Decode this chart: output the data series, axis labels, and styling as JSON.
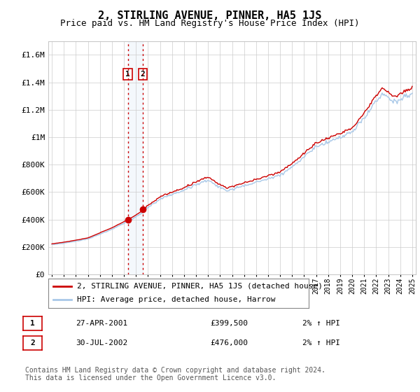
{
  "title": "2, STIRLING AVENUE, PINNER, HA5 1JS",
  "subtitle": "Price paid vs. HM Land Registry's House Price Index (HPI)",
  "y_values": [
    0,
    200000,
    400000,
    600000,
    800000,
    1000000,
    1200000,
    1400000,
    1600000
  ],
  "ylim": [
    0,
    1700000
  ],
  "x_start_year": 1995,
  "x_end_year": 2025,
  "line_color_hpi": "#a8c8e8",
  "line_color_price": "#cc0000",
  "marker_color": "#cc0000",
  "vline_color": "#cc0000",
  "transaction1_year": 2001.32,
  "transaction1_price": 399500,
  "transaction2_year": 2002.58,
  "transaction2_price": 476000,
  "legend_label1": "2, STIRLING AVENUE, PINNER, HA5 1JS (detached house)",
  "legend_label2": "HPI: Average price, detached house, Harrow",
  "table_row1": [
    "1",
    "27-APR-2001",
    "£399,500",
    "2% ↑ HPI"
  ],
  "table_row2": [
    "2",
    "30-JUL-2002",
    "£476,000",
    "2% ↑ HPI"
  ],
  "footnote": "Contains HM Land Registry data © Crown copyright and database right 2024.\nThis data is licensed under the Open Government Licence v3.0.",
  "background_color": "#ffffff",
  "grid_color": "#cccccc",
  "title_fontsize": 11,
  "subtitle_fontsize": 9,
  "tick_fontsize": 8,
  "legend_fontsize": 8,
  "table_fontsize": 8,
  "footnote_fontsize": 7
}
